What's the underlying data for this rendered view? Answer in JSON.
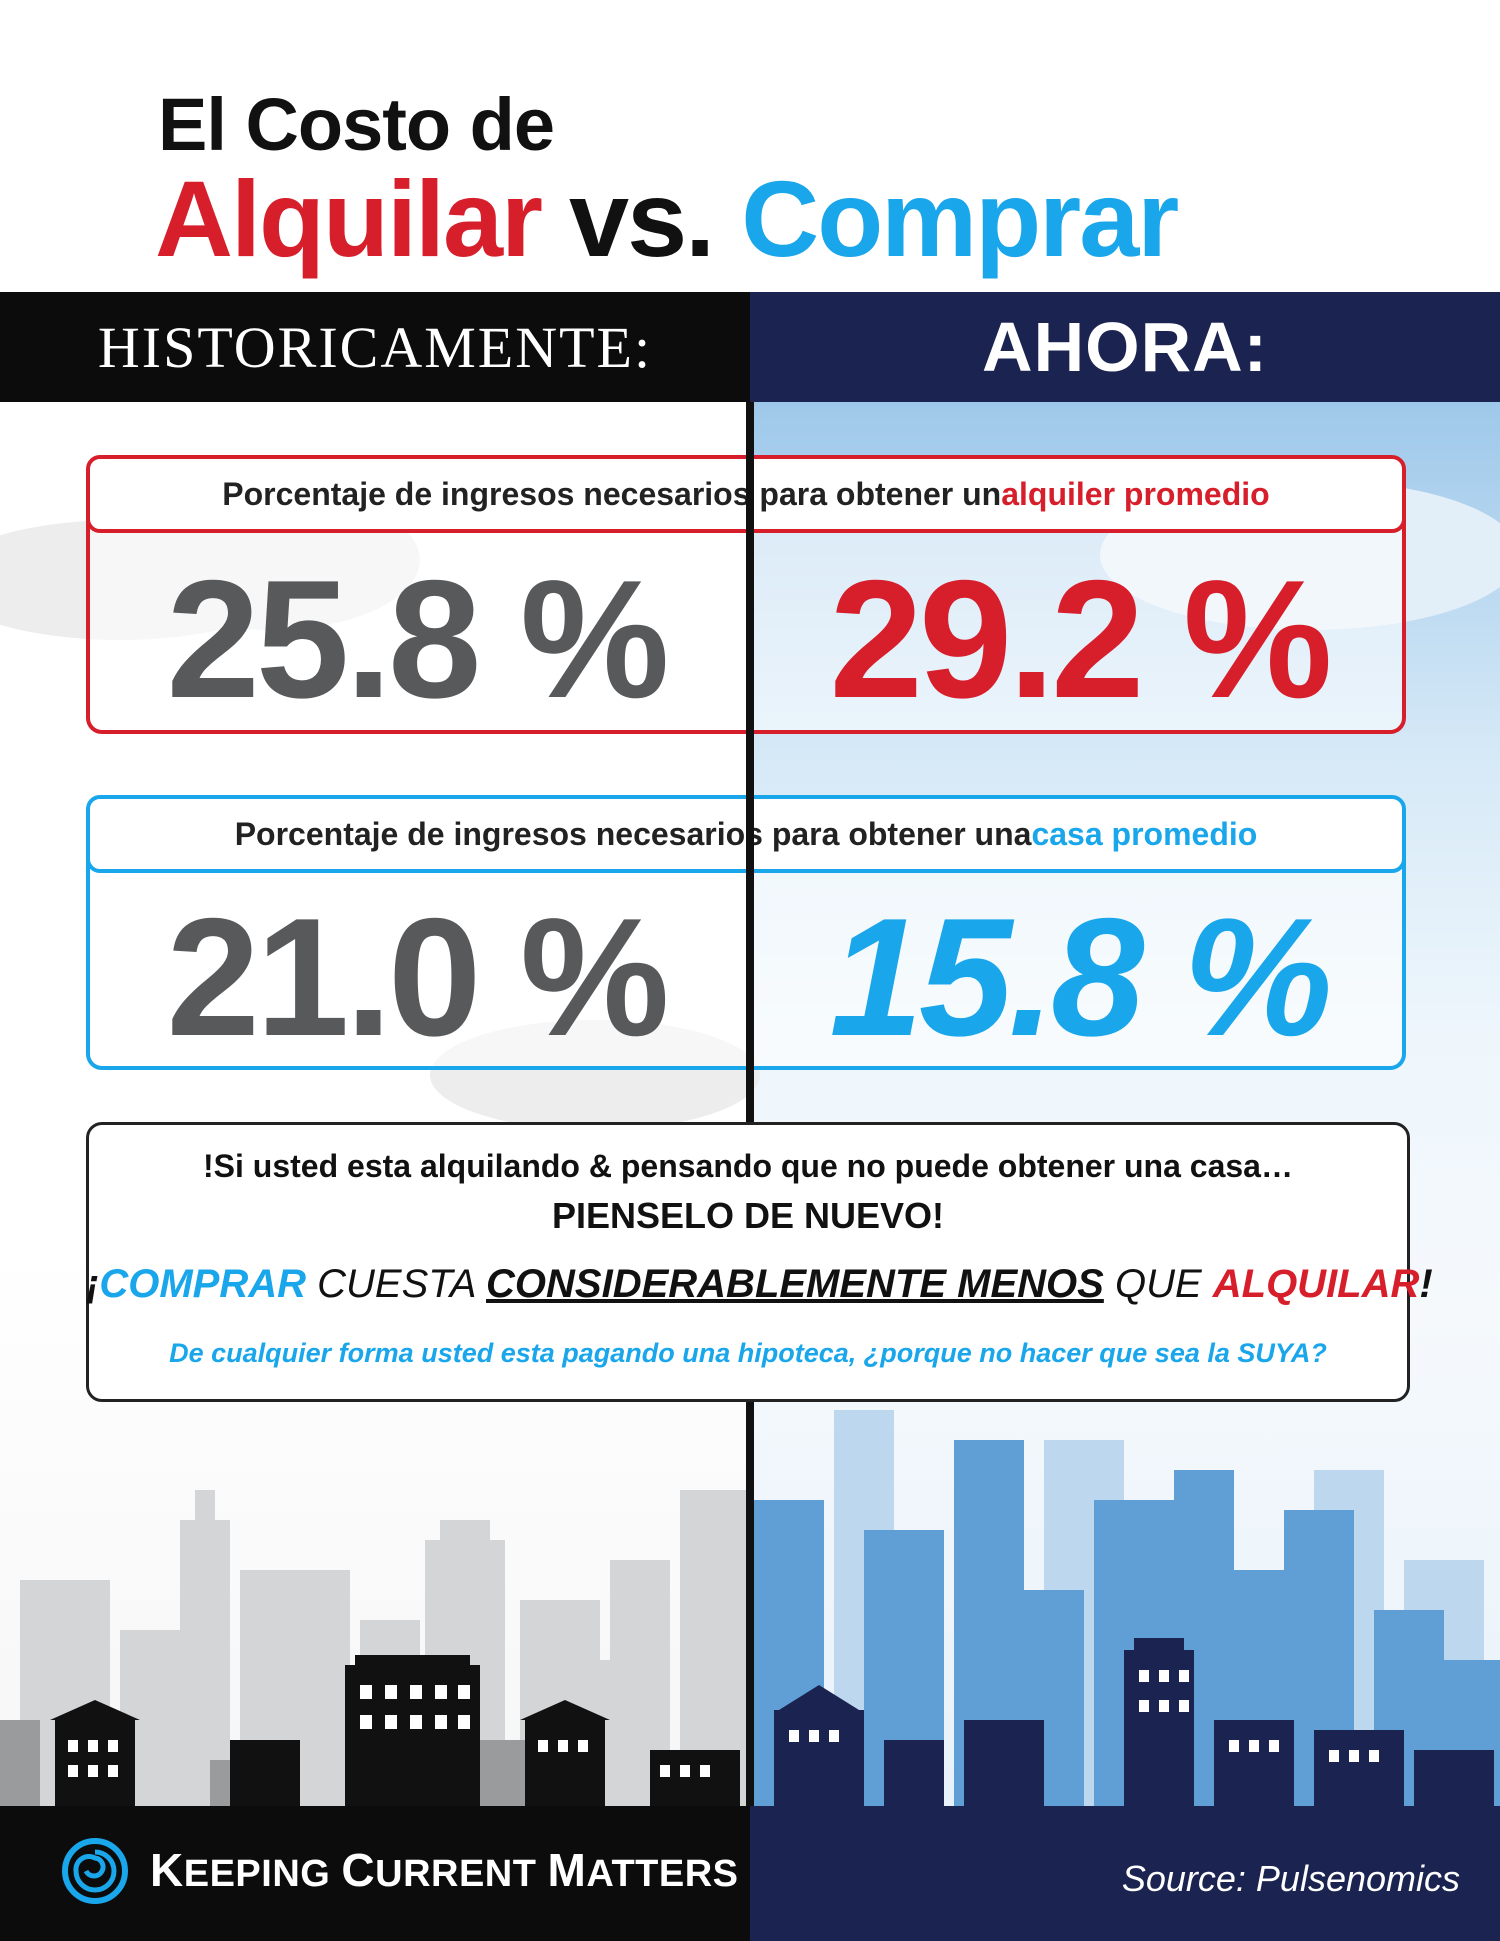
{
  "title": {
    "line1": "El Costo de",
    "word_rent": "Alquilar",
    "word_vs": " vs. ",
    "word_buy": "Comprar"
  },
  "header": {
    "left": "HISTORICAMENTE:",
    "right": "AHORA:"
  },
  "rent_section": {
    "label_prefix": "Porcentaje de ingresos necesarios para obtener un ",
    "label_highlight": "alquiler promedio",
    "historic_value": "25.8 %",
    "now_value": "29.2 %"
  },
  "buy_section": {
    "label_prefix": "Porcentaje de ingresos necesarios para obtener una ",
    "label_highlight": "casa promedio",
    "historic_value": "21.0 %",
    "now_value": "15.8 %"
  },
  "message": {
    "line1": "!Si usted esta alquilando & pensando que no puede obtener una casa…",
    "line2": "PIENSELO DE NUEVO!",
    "line3_start": "¡",
    "line3_buy": "COMPRAR",
    "line3_mid": " CUESTA ",
    "line3_emph": "CONSIDERABLEMENTE MENOS",
    "line3_que": " QUE ",
    "line3_rent": "ALQUILAR",
    "line3_end": "!",
    "line4": "De cualquier forma usted esta pagando una hipoteca, ¿porque no hacer que sea la SUYA?"
  },
  "footer": {
    "brand_k": "K",
    "brand_eeping": "EEPING ",
    "brand_c": "C",
    "brand_urrent": "URRENT ",
    "brand_m": "M",
    "brand_atters": "ATTERS",
    "source": "Source: Pulsenomics"
  },
  "colors": {
    "rent_red": "#d71f2c",
    "buy_blue": "#19a6ea",
    "navy": "#1b2450",
    "grey_text": "#58595b"
  },
  "icons": {
    "logo": "swirl-logo-icon",
    "skyline_left": "grey-city-skyline",
    "skyline_right": "blue-city-skyline"
  }
}
